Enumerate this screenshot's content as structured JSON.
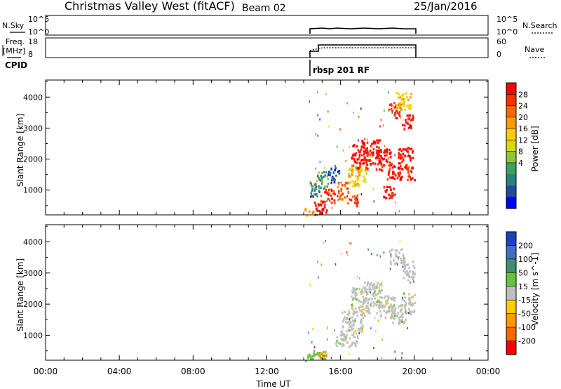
{
  "header": {
    "title": "Christmas Valley West (fitACF)",
    "beam": "Beam 02",
    "date": "25/Jan/2016"
  },
  "top_panels": {
    "nsky_label": "N.Sky",
    "nsky_ticks": [
      "10^5",
      "10^0"
    ],
    "nsky_right_ticks": [
      "10^5",
      "10^0"
    ],
    "nsearch_label": "N.Search",
    "freq_label_line1": "Freq.",
    "freq_label_line2": "[MHz]",
    "freq_ticks": [
      "18",
      "8"
    ],
    "nave_ticks": [
      "60",
      "0"
    ],
    "nave_label": "Nave",
    "cpid_label": "CPID",
    "cpid_text": "rbsp 201 RF"
  },
  "chart_data": [
    {
      "type": "heatmap",
      "name": "power",
      "ylabel": "Slant Range [km]",
      "y_ticks": [
        1000,
        2000,
        3000,
        4000
      ],
      "ylim": [
        200,
        4550
      ],
      "xlim": [
        0,
        24
      ],
      "colorbar": {
        "label": "Power [dB]",
        "ticks": [
          "28",
          "24",
          "20",
          "16",
          "12",
          "8",
          "4"
        ],
        "colors": [
          "#ff0000",
          "#ff2f00",
          "#ff6600",
          "#ff9900",
          "#ffcc00",
          "#d9d900",
          "#8cc63f",
          "#3f9f5f",
          "#2a7f7f",
          "#204b9f",
          "#0000ff"
        ]
      },
      "echo_blobs": [
        {
          "t": 14.35,
          "r": 300,
          "dt": 0.35,
          "dr": 200,
          "c": 3
        },
        {
          "t": 14.9,
          "r": 450,
          "dt": 0.35,
          "dr": 220,
          "c": 0
        },
        {
          "t": 15.3,
          "r": 850,
          "dt": 0.4,
          "dr": 250,
          "c": 1
        },
        {
          "t": 14.6,
          "r": 1050,
          "dt": 0.3,
          "dr": 250,
          "c": 8
        },
        {
          "t": 15.0,
          "r": 1350,
          "dt": 0.3,
          "dr": 300,
          "c": 7
        },
        {
          "t": 15.6,
          "r": 1500,
          "dt": 0.3,
          "dr": 250,
          "c": 9
        },
        {
          "t": 16.1,
          "r": 1000,
          "dt": 0.3,
          "dr": 300,
          "c": 2
        },
        {
          "t": 16.6,
          "r": 700,
          "dt": 0.3,
          "dr": 200,
          "c": 1
        },
        {
          "t": 16.9,
          "r": 1500,
          "dt": 0.5,
          "dr": 350,
          "c": 4
        },
        {
          "t": 17.0,
          "r": 2100,
          "dt": 0.45,
          "dr": 400,
          "c": 0
        },
        {
          "t": 17.6,
          "r": 2250,
          "dt": 0.5,
          "dr": 400,
          "c": 0
        },
        {
          "t": 18.3,
          "r": 2000,
          "dt": 0.45,
          "dr": 350,
          "c": 0
        },
        {
          "t": 18.9,
          "r": 1650,
          "dt": 0.4,
          "dr": 300,
          "c": 0
        },
        {
          "t": 19.5,
          "r": 2050,
          "dt": 0.4,
          "dr": 350,
          "c": 0
        },
        {
          "t": 19.8,
          "r": 1550,
          "dt": 0.25,
          "dr": 250,
          "c": 1
        },
        {
          "t": 18.6,
          "r": 950,
          "dt": 0.35,
          "dr": 200,
          "c": 0
        },
        {
          "t": 18.9,
          "r": 3600,
          "dt": 0.35,
          "dr": 250,
          "c": 1
        },
        {
          "t": 19.6,
          "r": 3200,
          "dt": 0.3,
          "dr": 250,
          "c": 0
        },
        {
          "t": 19.4,
          "r": 3900,
          "dt": 0.4,
          "dr": 300,
          "c": 4
        }
      ]
    },
    {
      "type": "heatmap",
      "name": "velocity",
      "ylabel": "Slant Range [km]",
      "y_ticks": [
        1000,
        2000,
        3000,
        4000
      ],
      "ylim": [
        200,
        4550
      ],
      "xlim": [
        0,
        24
      ],
      "x_tick_labels": [
        "00:00",
        "04:00",
        "08:00",
        "12:00",
        "16:00",
        "20:00",
        "00:00"
      ],
      "xlabel": "Time UT",
      "colorbar": {
        "label": "Velocity [m s^-1]",
        "ticks": [
          "200",
          "100",
          "50",
          "15",
          "-15",
          "-50",
          "-100",
          "-200"
        ],
        "colors": [
          "#1f3fbf",
          "#3f6fbf",
          "#3f8f6f",
          "#66c33f",
          "#bfbfbf",
          "#ffcc00",
          "#ff9900",
          "#ff6600",
          "#ff0000"
        ]
      },
      "echo_blobs": [
        {
          "t": 14.6,
          "r": 350,
          "dt": 0.6,
          "dr": 200,
          "c": 3
        },
        {
          "t": 15.0,
          "r": 400,
          "dt": 0.25,
          "dr": 120,
          "c": 6
        },
        {
          "t": 16.3,
          "r": 900,
          "dt": 0.6,
          "dr": 250,
          "c": 4
        },
        {
          "t": 16.6,
          "r": 1500,
          "dt": 0.6,
          "dr": 350,
          "c": 4
        },
        {
          "t": 17.0,
          "r": 2100,
          "dt": 0.5,
          "dr": 450,
          "c": 4
        },
        {
          "t": 17.7,
          "r": 2300,
          "dt": 0.5,
          "dr": 450,
          "c": 4
        },
        {
          "t": 18.4,
          "r": 1950,
          "dt": 0.5,
          "dr": 350,
          "c": 4
        },
        {
          "t": 19.0,
          "r": 1700,
          "dt": 0.5,
          "dr": 300,
          "c": 4
        },
        {
          "t": 19.6,
          "r": 2050,
          "dt": 0.4,
          "dr": 350,
          "c": 4
        },
        {
          "t": 19.7,
          "r": 3100,
          "dt": 0.35,
          "dr": 300,
          "c": 4
        },
        {
          "t": 19.0,
          "r": 3550,
          "dt": 0.4,
          "dr": 250,
          "c": 4
        }
      ]
    }
  ]
}
